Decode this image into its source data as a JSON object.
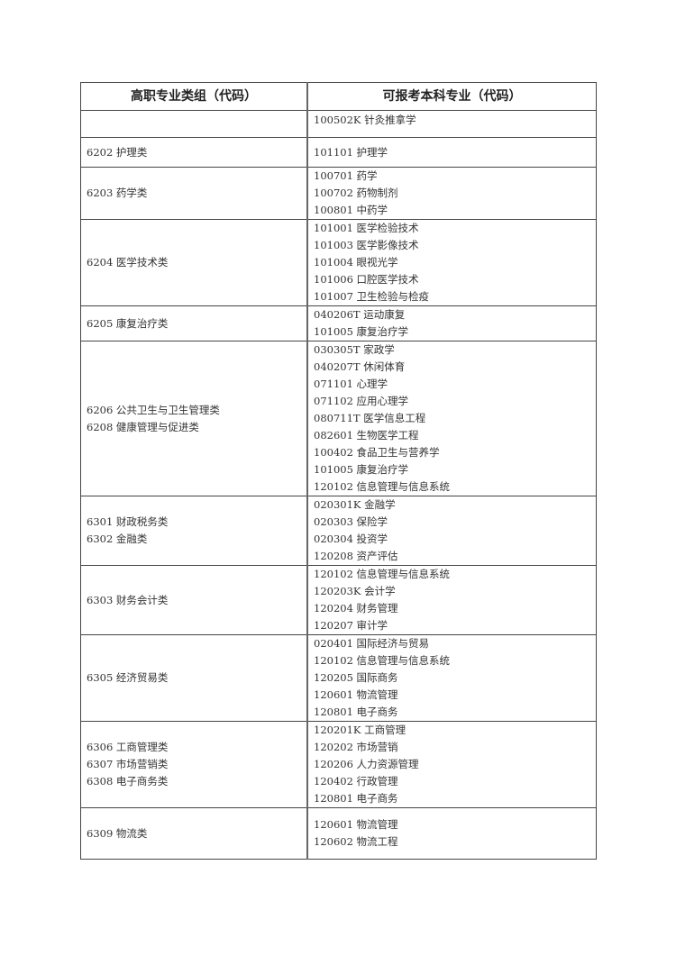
{
  "table": {
    "headers": [
      "高职专业类组（代码）",
      "可报考本科专业（代码）"
    ],
    "rows": [
      {
        "groups": [],
        "majors": [
          "100502K 针灸推拿学"
        ]
      },
      {
        "groups": [
          "6202 护理类"
        ],
        "majors": [
          "101101 护理学"
        ]
      },
      {
        "groups": [
          "6203 药学类"
        ],
        "majors": [
          "100701 药学",
          "100702 药物制剂",
          "100801 中药学"
        ]
      },
      {
        "groups": [
          "6204 医学技术类"
        ],
        "majors": [
          "101001 医学检验技术",
          "101003 医学影像技术",
          "101004 眼视光学",
          "101006 口腔医学技术",
          "101007 卫生检验与检疫"
        ]
      },
      {
        "groups": [
          "6205 康复治疗类"
        ],
        "majors": [
          "040206T 运动康复",
          "101005 康复治疗学"
        ]
      },
      {
        "groups": [
          "6206 公共卫生与卫生管理类",
          "6208 健康管理与促进类"
        ],
        "majors": [
          "030305T 家政学",
          "040207T 休闲体育",
          "071101 心理学",
          "071102 应用心理学",
          "080711T 医学信息工程",
          "082601 生物医学工程",
          "100402 食品卫生与营养学",
          "101005 康复治疗学",
          "120102 信息管理与信息系统"
        ]
      },
      {
        "groups": [
          "6301 财政税务类",
          "6302 金融类"
        ],
        "majors": [
          "020301K 金融学",
          "020303 保险学",
          "020304 投资学",
          "120208 资产评估"
        ]
      },
      {
        "groups": [
          "6303 财务会计类"
        ],
        "majors": [
          "120102 信息管理与信息系统",
          "120203K 会计学",
          "120204 财务管理",
          "120207 审计学"
        ]
      },
      {
        "groups": [
          "6305 经济贸易类"
        ],
        "majors": [
          "020401 国际经济与贸易",
          "120102 信息管理与信息系统",
          "120205 国际商务",
          "120601 物流管理",
          "120801 电子商务"
        ]
      },
      {
        "groups": [
          "6306 工商管理类",
          "6307 市场营销类",
          "6308 电子商务类"
        ],
        "majors": [
          "120201K 工商管理",
          "120202 市场营销",
          "120206 人力资源管理",
          "120402 行政管理",
          "120801 电子商务"
        ]
      },
      {
        "groups": [
          "6309 物流类"
        ],
        "majors": [
          "120601 物流管理",
          "120602 物流工程"
        ]
      }
    ]
  }
}
